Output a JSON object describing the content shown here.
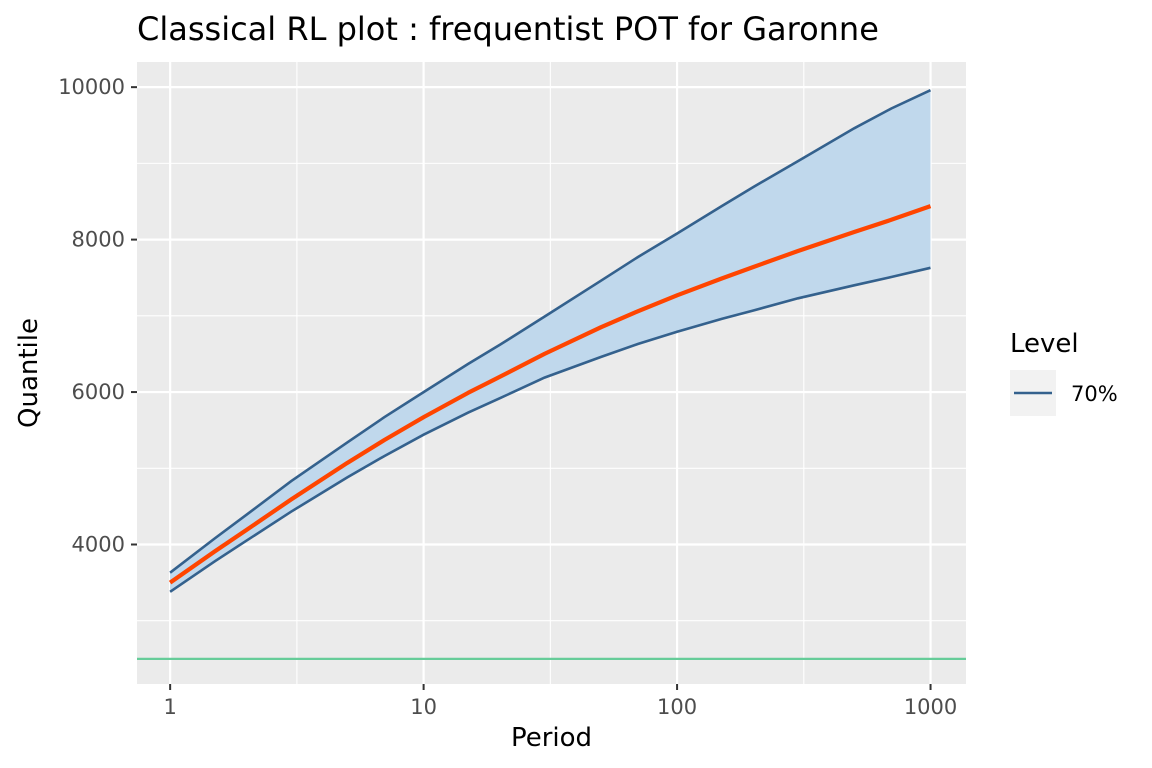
{
  "chart_data": {
    "type": "line",
    "title": "Classical RL plot : frequentist POT for Garonne",
    "xlabel": "Period",
    "ylabel": "Quantile",
    "x_scale": "log10",
    "xlim": [
      0.74,
      1380
    ],
    "ylim": [
      2170,
      10330
    ],
    "x_ticks": [
      1,
      10,
      100,
      1000
    ],
    "x_tick_labels": [
      "1",
      "10",
      "100",
      "1000"
    ],
    "y_ticks": [
      4000,
      6000,
      8000,
      10000
    ],
    "y_tick_labels": [
      "4000",
      "6000",
      "8000",
      "10000"
    ],
    "grid": true,
    "legend": {
      "title": "Level",
      "position": "right",
      "entries": [
        {
          "label": "70%",
          "color": "#34618d"
        }
      ]
    },
    "colors": {
      "panel_background": "#ebebeb",
      "grid": "#ffffff",
      "band_fill": "#c0d8ec",
      "band_line": "#34618d",
      "estimate_line": "#ff4500",
      "threshold_line": "#66cc99"
    },
    "series": [
      {
        "role": "estimate",
        "x": [
          1,
          1.5,
          2,
          3,
          5,
          7,
          10,
          15,
          20,
          30,
          50,
          70,
          100,
          150,
          200,
          300,
          500,
          700,
          1000
        ],
        "values": [
          3500,
          3910,
          4190,
          4590,
          5070,
          5370,
          5670,
          5990,
          6200,
          6500,
          6850,
          7060,
          7270,
          7490,
          7640,
          7850,
          8100,
          8260,
          8440
        ]
      },
      {
        "role": "upper",
        "level": "70%",
        "x": [
          1,
          1.5,
          2,
          3,
          5,
          7,
          10,
          15,
          20,
          30,
          50,
          70,
          100,
          150,
          200,
          300,
          500,
          700,
          1000
        ],
        "values": [
          3630,
          4080,
          4390,
          4830,
          5340,
          5670,
          6000,
          6370,
          6620,
          6990,
          7460,
          7770,
          8080,
          8440,
          8690,
          9030,
          9460,
          9720,
          9960
        ]
      },
      {
        "role": "lower",
        "level": "70%",
        "x": [
          1,
          1.5,
          2,
          3,
          5,
          7,
          10,
          15,
          20,
          30,
          50,
          70,
          100,
          150,
          200,
          300,
          500,
          700,
          1000
        ],
        "values": [
          3380,
          3780,
          4050,
          4430,
          4880,
          5160,
          5440,
          5730,
          5920,
          6190,
          6460,
          6630,
          6790,
          6960,
          7070,
          7230,
          7400,
          7510,
          7630
        ]
      }
    ],
    "threshold": 2500
  }
}
